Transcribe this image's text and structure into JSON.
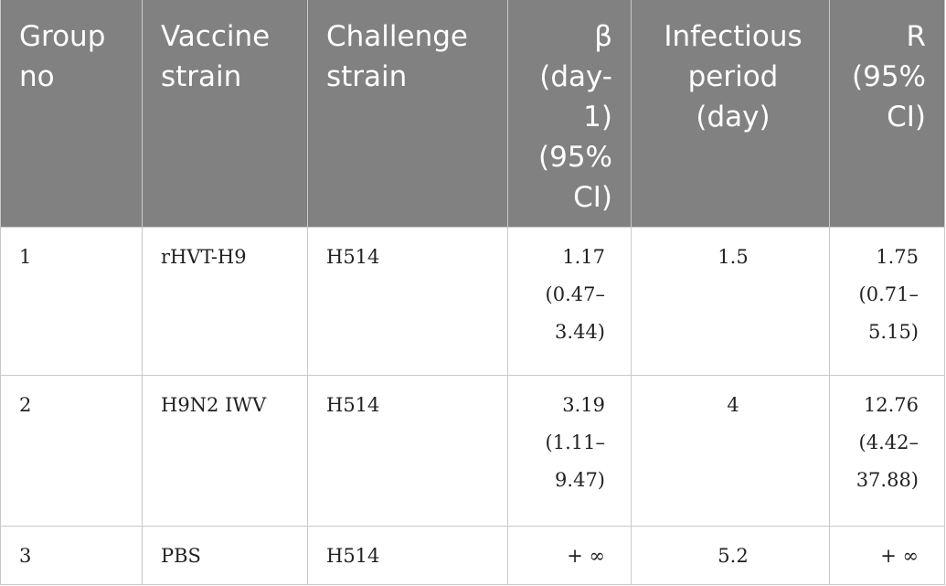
{
  "table": {
    "headers": [
      "Group no",
      "Vaccine strain",
      "Challenge strain",
      "β (day-1) (95% CI)",
      "Infectious period (day)",
      "R (95% CI)"
    ],
    "rows": [
      {
        "group": "1",
        "vaccine": "rHVT-H9",
        "challenge": "H514",
        "beta_value": "1.17",
        "beta_ci_lo": "(0.47–",
        "beta_ci_hi": "3.44)",
        "infectious_period": "1.5",
        "r_value": "1.75",
        "r_ci_lo": "(0.71–",
        "r_ci_hi": "5.15)"
      },
      {
        "group": "2",
        "vaccine": "H9N2 IWV",
        "challenge": "H514",
        "beta_value": "3.19",
        "beta_ci_lo": "(1.11–",
        "beta_ci_hi": "9.47)",
        "infectious_period": "4",
        "r_value": "12.76",
        "r_ci_lo": "(4.42–",
        "r_ci_hi": "37.88)"
      },
      {
        "group": "3",
        "vaccine": "PBS",
        "challenge": "H514",
        "beta_value": "+ ∞",
        "beta_ci_lo": "",
        "beta_ci_hi": "",
        "infectious_period": "5.2",
        "r_value": "+ ∞",
        "r_ci_lo": "",
        "r_ci_hi": ""
      }
    ]
  }
}
